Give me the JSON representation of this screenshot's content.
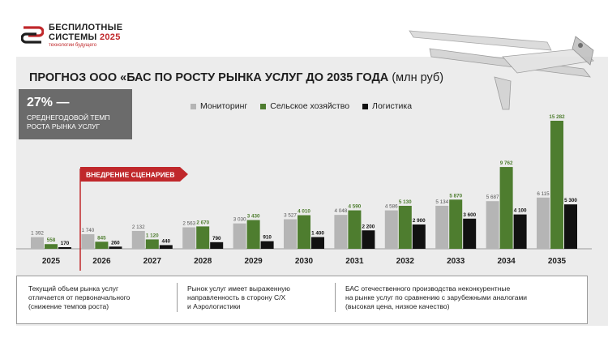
{
  "brand": {
    "line1": "БЕСПИЛОТНЫЕ",
    "line2": "СИСТЕМЫ",
    "year": "2025",
    "tagline": "технологии будущего"
  },
  "title": {
    "main": "ПРОГНОЗ ООО «БАС ПО РОСТУ РЫНКА УСЛУГ ДО 2035 ГОДА",
    "unit": "(млн руб)"
  },
  "kpi": {
    "value": "27% —",
    "line1": "СРЕДНЕГОДОВОЙ ТЕМП",
    "line2": "РОСТА РЫНКА УСЛУГ"
  },
  "colors": {
    "monitoring": "#b5b5b5",
    "agriculture": "#4e7d2f",
    "logistics": "#111111",
    "accent": "#c0282b"
  },
  "chart_data": {
    "type": "bar",
    "title": "ПРОГНОЗ ООО «БАС ПО РОСТУ РЫНКА УСЛУГ ДО 2035 ГОДА (млн руб)",
    "categories": [
      "2025",
      "2026",
      "2027",
      "2028",
      "2029",
      "2030",
      "2031",
      "2032",
      "2033",
      "2034",
      "2035"
    ],
    "series": [
      {
        "name": "Мониторинг",
        "values": [
          1392,
          1740,
          2132,
          2563,
          3030,
          3527,
          4048,
          4586,
          5134,
          5687,
          6115
        ],
        "labels": [
          "1 392",
          "1 740",
          "2 132",
          "2 563",
          "3 030",
          "3 527",
          "4 048",
          "4 586",
          "5 134",
          "5 687",
          "6 115"
        ]
      },
      {
        "name": "Сельское хозяйство",
        "values": [
          558,
          845,
          1120,
          2670,
          3430,
          4010,
          4590,
          5130,
          5870,
          9762,
          15282
        ],
        "labels": [
          "558",
          "845",
          "1 120",
          "2 670",
          "3 430",
          "4 010",
          "4 590",
          "5 130",
          "5 870",
          "9 762",
          "15 282"
        ]
      },
      {
        "name": "Логистика",
        "values": [
          170,
          260,
          440,
          790,
          910,
          1400,
          2200,
          2900,
          3600,
          4100,
          5300
        ],
        "labels": [
          "170",
          "260",
          "440",
          "790",
          "910",
          "1 400",
          "2 200",
          "2 900",
          "3 600",
          "4 100",
          "5 300"
        ]
      }
    ],
    "ylim": [
      0,
      15282
    ],
    "annotation": "ВНЕДРЕНИЕ СЦЕНАРИЕВ",
    "xlabel": "",
    "ylabel": "",
    "legend": "top"
  },
  "notes": [
    {
      "lines": [
        "Текущий объем рынка услуг",
        "отличается от первоначального",
        "(снижение темпов роста)"
      ]
    },
    {
      "lines": [
        "Рынок услуг имеет выраженную",
        "направленность в сторону С/Х",
        "и Аэрологистики"
      ]
    },
    {
      "lines": [
        "БАС отечественного производства неконкурентные",
        "на рынке услуг по сравнению с зарубежными аналогами",
        "(высокая цена, низкое качество)"
      ]
    }
  ]
}
